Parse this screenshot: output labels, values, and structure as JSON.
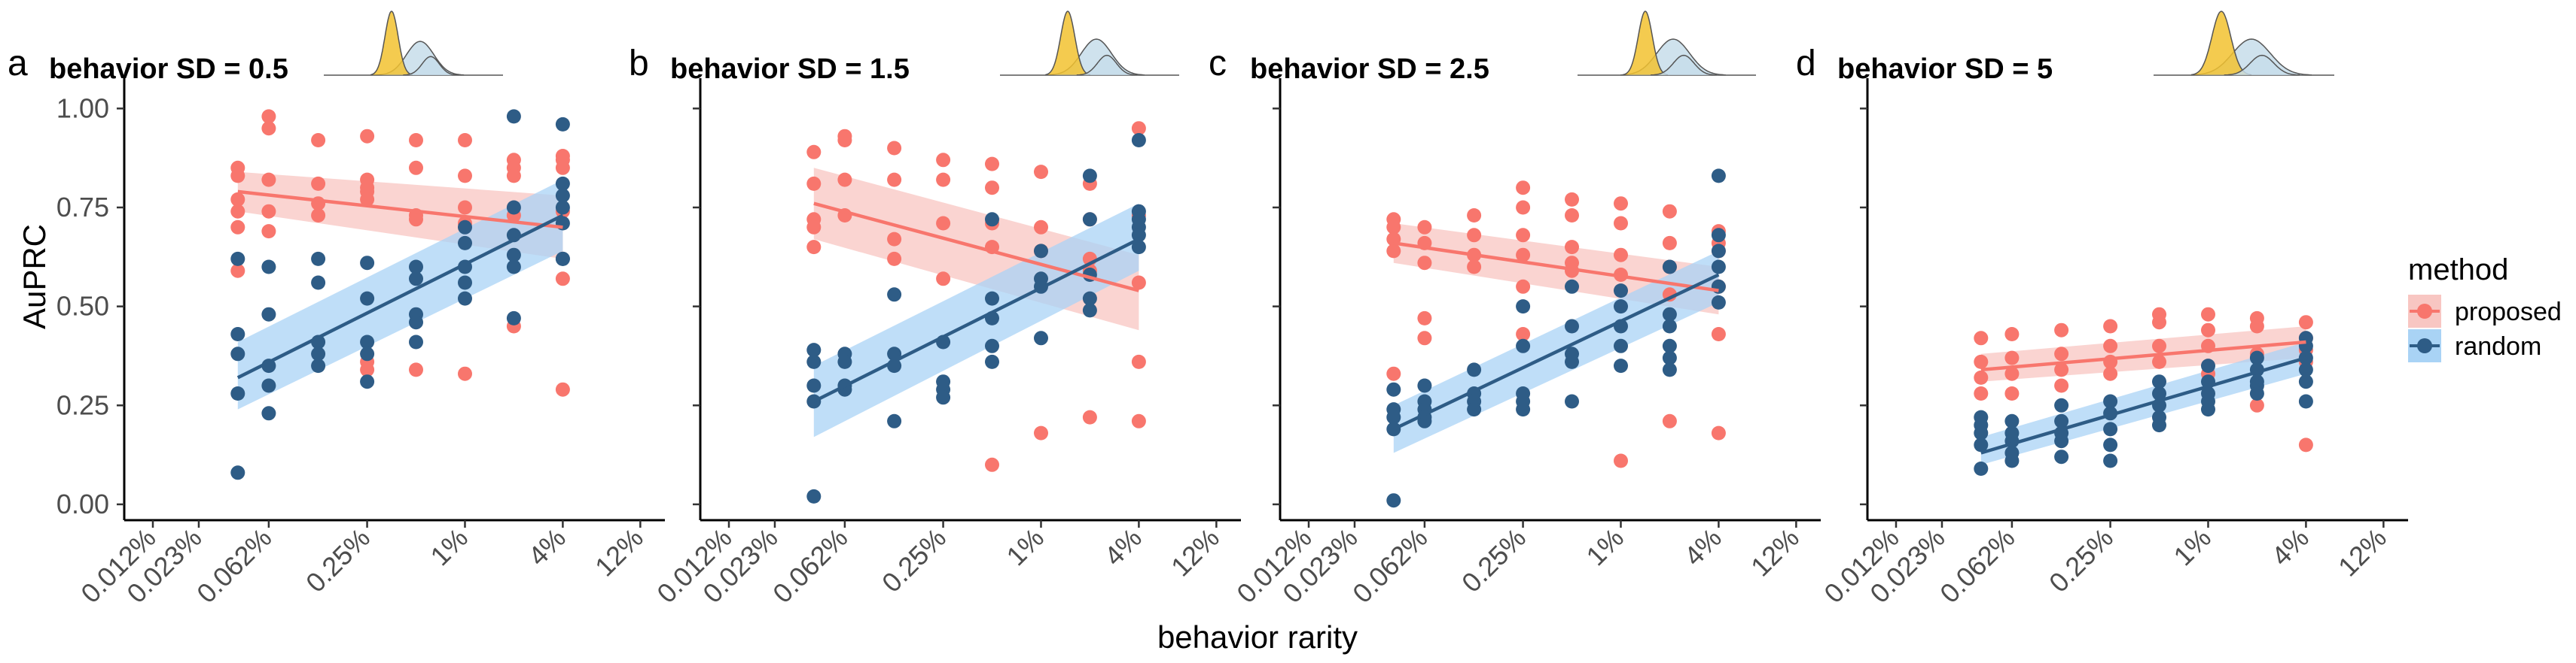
{
  "chart_data": {
    "type": "scatter",
    "xlabel": "behavior rarity",
    "ylabel": "AuPRC",
    "x_ticks": [
      "0.012%",
      "0.023%",
      "0.062%",
      "0.25%",
      "1%",
      "4%",
      "12%"
    ],
    "x_tick_values": [
      0.012,
      0.023,
      0.062,
      0.25,
      1,
      4,
      12
    ],
    "x_scale": "log",
    "xlim": [
      0.008,
      17
    ],
    "y_ticks": [
      "0.00",
      "0.25",
      "0.50",
      "0.75",
      "1.00"
    ],
    "ylim": [
      -0.04,
      1.05
    ],
    "grid": false,
    "legend": {
      "title": "method",
      "position": "right",
      "entries": [
        {
          "label": "proposed",
          "color": "#F8766D",
          "band_color": "#F8C6C2"
        },
        {
          "label": "random",
          "color": "#2E5C86",
          "band_color": "#A9D3F5"
        }
      ]
    },
    "panels": [
      {
        "letter": "a",
        "title": "behavior SD = 0.5",
        "series": [
          {
            "name": "proposed",
            "x": [
              0.04,
              0.04,
              0.04,
              0.04,
              0.04,
              0.04,
              0.062,
              0.062,
              0.062,
              0.062,
              0.062,
              0.125,
              0.125,
              0.125,
              0.125,
              0.25,
              0.25,
              0.25,
              0.25,
              0.25,
              0.25,
              0.25,
              0.5,
              0.5,
              0.5,
              0.5,
              0.5,
              1,
              1,
              1,
              1,
              1,
              2,
              2,
              2,
              2,
              2,
              4,
              4,
              4,
              4,
              4,
              4
            ],
            "y": [
              0.85,
              0.83,
              0.77,
              0.74,
              0.7,
              0.59,
              0.98,
              0.95,
              0.82,
              0.74,
              0.69,
              0.92,
              0.81,
              0.76,
              0.73,
              0.93,
              0.82,
              0.8,
              0.79,
              0.77,
              0.36,
              0.34,
              0.92,
              0.85,
              0.73,
              0.72,
              0.34,
              0.92,
              0.83,
              0.75,
              0.71,
              0.33,
              0.87,
              0.85,
              0.83,
              0.73,
              0.45,
              0.88,
              0.87,
              0.85,
              0.74,
              0.57,
              0.29
            ],
            "fit": {
              "y_start": 0.79,
              "y_end": 0.7,
              "band_start": [
                0.74,
                0.84
              ],
              "band_end": [
                0.62,
                0.78
              ]
            }
          },
          {
            "name": "random",
            "x": [
              0.04,
              0.04,
              0.04,
              0.04,
              0.04,
              0.062,
              0.062,
              0.062,
              0.062,
              0.062,
              0.125,
              0.125,
              0.125,
              0.125,
              0.125,
              0.25,
              0.25,
              0.25,
              0.25,
              0.25,
              0.5,
              0.5,
              0.5,
              0.5,
              0.5,
              1,
              1,
              1,
              1,
              1,
              2,
              2,
              2,
              2,
              2,
              2,
              4,
              4,
              4,
              4,
              4,
              4,
              4
            ],
            "y": [
              0.62,
              0.43,
              0.38,
              0.28,
              0.08,
              0.6,
              0.48,
              0.35,
              0.3,
              0.23,
              0.62,
              0.56,
              0.41,
              0.38,
              0.35,
              0.61,
              0.52,
              0.41,
              0.38,
              0.31,
              0.57,
              0.48,
              0.46,
              0.41,
              0.6,
              0.7,
              0.66,
              0.6,
              0.56,
              0.52,
              0.98,
              0.75,
              0.68,
              0.63,
              0.6,
              0.47,
              0.96,
              0.81,
              0.78,
              0.75,
              0.71,
              0.62,
              0.62
            ],
            "fit": {
              "y_start": 0.32,
              "y_end": 0.73,
              "band_start": [
                0.24,
                0.41
              ],
              "band_end": [
                0.64,
                0.82
              ]
            }
          }
        ]
      },
      {
        "letter": "b",
        "title": "behavior SD = 1.5",
        "series": [
          {
            "name": "proposed",
            "x": [
              0.04,
              0.04,
              0.04,
              0.04,
              0.04,
              0.062,
              0.062,
              0.062,
              0.062,
              0.125,
              0.125,
              0.125,
              0.125,
              0.25,
              0.25,
              0.25,
              0.25,
              0.5,
              0.5,
              0.5,
              0.5,
              0.5,
              1,
              1,
              1,
              1,
              2,
              2,
              2,
              2,
              2,
              4,
              4,
              4,
              4,
              4
            ],
            "y": [
              0.89,
              0.81,
              0.72,
              0.7,
              0.65,
              0.93,
              0.92,
              0.82,
              0.73,
              0.9,
              0.82,
              0.67,
              0.62,
              0.87,
              0.82,
              0.71,
              0.57,
              0.86,
              0.8,
              0.71,
              0.65,
              0.1,
              0.84,
              0.7,
              0.64,
              0.18,
              0.81,
              0.72,
              0.62,
              0.22,
              0.59,
              0.95,
              0.73,
              0.56,
              0.36,
              0.21
            ],
            "fit": {
              "y_start": 0.76,
              "y_end": 0.54,
              "band_start": [
                0.67,
                0.85
              ],
              "band_end": [
                0.44,
                0.63
              ]
            }
          },
          {
            "name": "random",
            "x": [
              0.04,
              0.04,
              0.04,
              0.04,
              0.04,
              0.062,
              0.062,
              0.062,
              0.062,
              0.125,
              0.125,
              0.125,
              0.125,
              0.25,
              0.25,
              0.25,
              0.25,
              0.5,
              0.5,
              0.5,
              0.5,
              0.5,
              1,
              1,
              1,
              1,
              2,
              2,
              2,
              2,
              2,
              4,
              4,
              4,
              4,
              4,
              4
            ],
            "y": [
              0.39,
              0.36,
              0.3,
              0.26,
              0.02,
              0.38,
              0.36,
              0.3,
              0.29,
              0.53,
              0.38,
              0.35,
              0.21,
              0.41,
              0.31,
              0.29,
              0.27,
              0.72,
              0.52,
              0.47,
              0.4,
              0.36,
              0.64,
              0.57,
              0.55,
              0.42,
              0.83,
              0.72,
              0.58,
              0.52,
              0.49,
              0.92,
              0.74,
              0.72,
              0.7,
              0.68,
              0.65
            ],
            "fit": {
              "y_start": 0.26,
              "y_end": 0.67,
              "band_start": [
                0.17,
                0.35
              ],
              "band_end": [
                0.59,
                0.76
              ]
            }
          }
        ]
      },
      {
        "letter": "c",
        "title": "behavior SD = 2.5",
        "series": [
          {
            "name": "proposed",
            "x": [
              0.04,
              0.04,
              0.04,
              0.04,
              0.04,
              0.062,
              0.062,
              0.062,
              0.062,
              0.062,
              0.125,
              0.125,
              0.125,
              0.125,
              0.25,
              0.25,
              0.25,
              0.25,
              0.25,
              0.25,
              0.5,
              0.5,
              0.5,
              0.5,
              0.5,
              1,
              1,
              1,
              1,
              1,
              2,
              2,
              2,
              2,
              2,
              4,
              4,
              4,
              4,
              4,
              4
            ],
            "y": [
              0.72,
              0.7,
              0.67,
              0.64,
              0.33,
              0.7,
              0.66,
              0.61,
              0.47,
              0.42,
              0.73,
              0.68,
              0.63,
              0.6,
              0.8,
              0.75,
              0.68,
              0.63,
              0.55,
              0.43,
              0.77,
              0.73,
              0.65,
              0.61,
              0.59,
              0.76,
              0.71,
              0.63,
              0.58,
              0.11,
              0.74,
              0.66,
              0.6,
              0.53,
              0.21,
              0.69,
              0.66,
              0.64,
              0.55,
              0.43,
              0.18
            ],
            "fit": {
              "y_start": 0.66,
              "y_end": 0.54,
              "band_start": [
                0.61,
                0.71
              ],
              "band_end": [
                0.48,
                0.6
              ]
            }
          },
          {
            "name": "random",
            "x": [
              0.04,
              0.04,
              0.04,
              0.04,
              0.04,
              0.062,
              0.062,
              0.062,
              0.062,
              0.062,
              0.125,
              0.125,
              0.125,
              0.125,
              0.25,
              0.25,
              0.25,
              0.25,
              0.25,
              0.5,
              0.5,
              0.5,
              0.5,
              0.5,
              1,
              1,
              1,
              1,
              1,
              2,
              2,
              2,
              2,
              2,
              2,
              4,
              4,
              4,
              4,
              4,
              4
            ],
            "y": [
              0.29,
              0.24,
              0.22,
              0.19,
              0.01,
              0.3,
              0.26,
              0.24,
              0.22,
              0.21,
              0.34,
              0.28,
              0.26,
              0.24,
              0.5,
              0.4,
              0.28,
              0.26,
              0.24,
              0.55,
              0.45,
              0.38,
              0.36,
              0.26,
              0.54,
              0.5,
              0.45,
              0.4,
              0.35,
              0.6,
              0.48,
              0.45,
              0.4,
              0.37,
              0.34,
              0.83,
              0.68,
              0.64,
              0.6,
              0.55,
              0.51
            ],
            "fit": {
              "y_start": 0.19,
              "y_end": 0.58,
              "band_start": [
                0.13,
                0.25
              ],
              "band_end": [
                0.51,
                0.64
              ]
            }
          }
        ]
      },
      {
        "letter": "d",
        "title": "behavior SD = 5",
        "series": [
          {
            "name": "proposed",
            "x": [
              0.04,
              0.04,
              0.04,
              0.04,
              0.062,
              0.062,
              0.062,
              0.062,
              0.125,
              0.125,
              0.125,
              0.125,
              0.25,
              0.25,
              0.25,
              0.25,
              0.5,
              0.5,
              0.5,
              0.5,
              1,
              1,
              1,
              1,
              2,
              2,
              2,
              2,
              4,
              4,
              4,
              4,
              4
            ],
            "y": [
              0.42,
              0.36,
              0.32,
              0.28,
              0.43,
              0.37,
              0.33,
              0.28,
              0.44,
              0.38,
              0.34,
              0.3,
              0.45,
              0.4,
              0.36,
              0.33,
              0.48,
              0.46,
              0.4,
              0.36,
              0.48,
              0.44,
              0.4,
              0.33,
              0.47,
              0.45,
              0.38,
              0.25,
              0.46,
              0.42,
              0.39,
              0.36,
              0.15
            ],
            "fit": {
              "y_start": 0.34,
              "y_end": 0.41,
              "band_start": [
                0.31,
                0.38
              ],
              "band_end": [
                0.37,
                0.45
              ]
            }
          },
          {
            "name": "random",
            "x": [
              0.04,
              0.04,
              0.04,
              0.04,
              0.04,
              0.062,
              0.062,
              0.062,
              0.062,
              0.062,
              0.125,
              0.125,
              0.125,
              0.125,
              0.125,
              0.25,
              0.25,
              0.25,
              0.25,
              0.25,
              0.5,
              0.5,
              0.5,
              0.5,
              0.5,
              1,
              1,
              1,
              1,
              1,
              2,
              2,
              2,
              2,
              2,
              4,
              4,
              4,
              4,
              4,
              4
            ],
            "y": [
              0.22,
              0.2,
              0.18,
              0.15,
              0.09,
              0.21,
              0.18,
              0.16,
              0.13,
              0.11,
              0.25,
              0.21,
              0.18,
              0.16,
              0.12,
              0.26,
              0.23,
              0.19,
              0.15,
              0.11,
              0.31,
              0.28,
              0.25,
              0.22,
              0.2,
              0.35,
              0.31,
              0.28,
              0.26,
              0.24,
              0.37,
              0.34,
              0.31,
              0.3,
              0.28,
              0.42,
              0.4,
              0.37,
              0.34,
              0.31,
              0.26
            ],
            "fit": {
              "y_start": 0.13,
              "y_end": 0.37,
              "band_start": [
                0.1,
                0.17
              ],
              "band_end": [
                0.33,
                0.41
              ]
            }
          }
        ]
      }
    ]
  }
}
